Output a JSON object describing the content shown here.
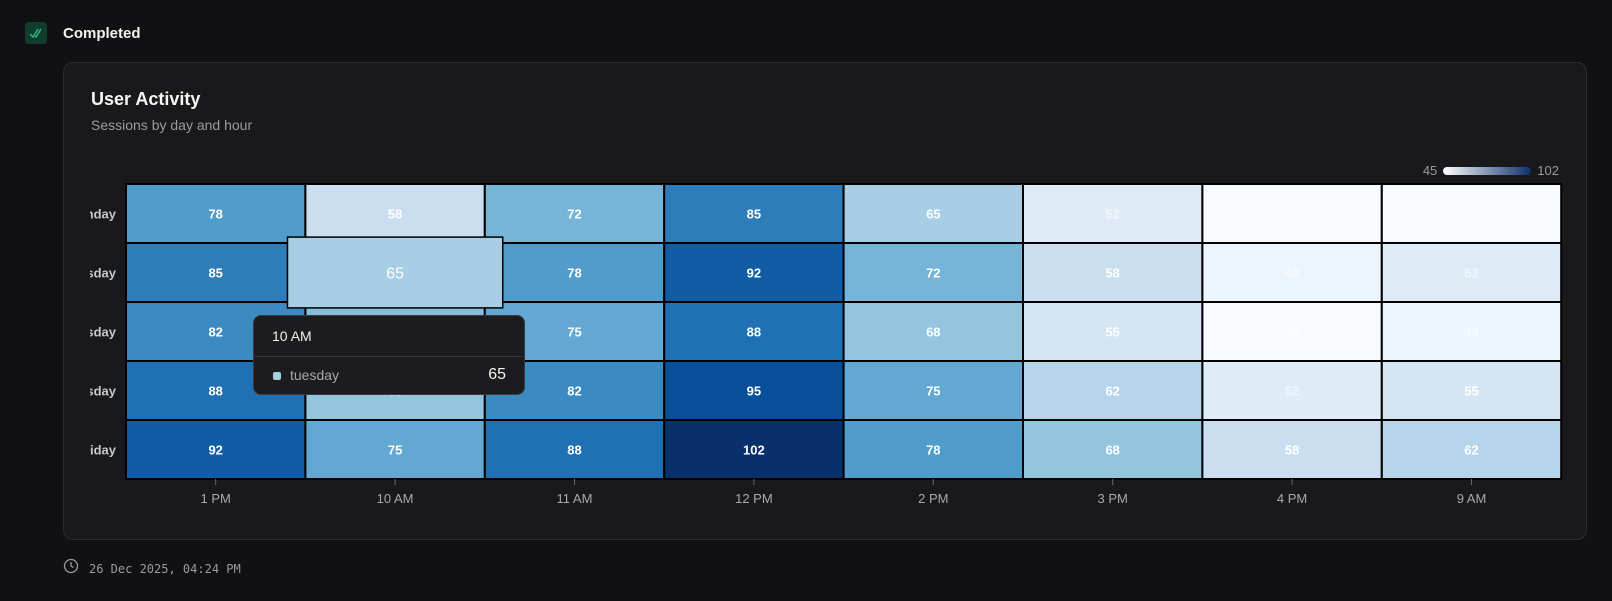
{
  "status": {
    "label": "Completed",
    "icon": "double-check-icon",
    "color": "#2fbf7f"
  },
  "card": {
    "title": "User Activity",
    "subtitle": "Sessions by day and hour"
  },
  "legend": {
    "min": "45",
    "max": "102",
    "color_low": "#ffffff",
    "color_high": "#0f2f6a"
  },
  "chart_data": {
    "type": "heatmap",
    "title": "User Activity",
    "subtitle": "Sessions by day and hour",
    "x": [
      "1 PM",
      "10 AM",
      "11 AM",
      "12 PM",
      "2 PM",
      "3 PM",
      "4 PM",
      "9 AM"
    ],
    "y_display": [
      "nday",
      "sday",
      "sday",
      "sday",
      "riday"
    ],
    "values": [
      [
        78,
        58,
        72,
        85,
        65,
        52,
        45,
        45
      ],
      [
        85,
        65,
        78,
        92,
        72,
        58,
        48,
        52
      ],
      [
        82,
        70,
        75,
        88,
        68,
        55,
        45,
        48
      ],
      [
        88,
        68,
        82,
        95,
        75,
        62,
        52,
        55
      ],
      [
        92,
        75,
        88,
        102,
        78,
        68,
        58,
        62
      ]
    ],
    "color_range": [
      45,
      102
    ],
    "legend": "top-right"
  },
  "tooltip": {
    "title": "10 AM",
    "series": "tuesday",
    "value": "65"
  },
  "hover_cell": {
    "row": 1,
    "col": 1
  },
  "footer": {
    "icon": "clock-icon",
    "timestamp": "26 Dec 2025, 04:24 PM"
  }
}
